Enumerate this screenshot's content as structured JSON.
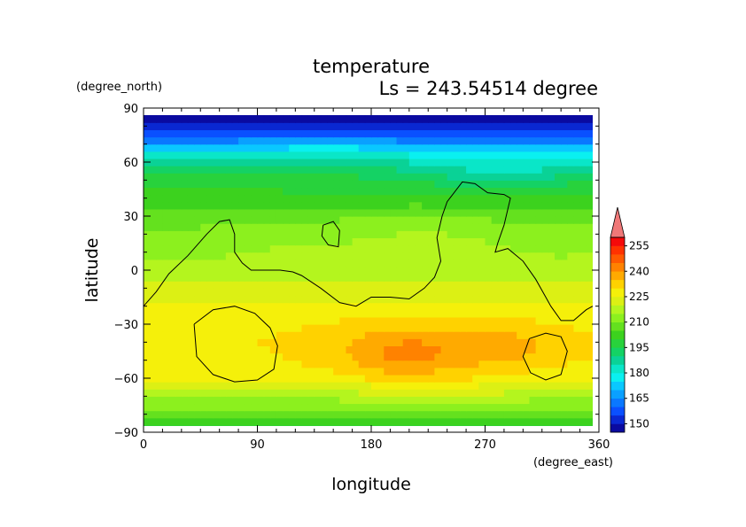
{
  "chart_data": {
    "type": "heatmap",
    "title": "temperature",
    "subtitle": "Ls = 243.54514 degree",
    "xlabel": "longitude",
    "ylabel": "latitude",
    "xunit": "(degree_east)",
    "yunit": "(degree_north)",
    "xlim": [
      0,
      360
    ],
    "ylim": [
      -90,
      90
    ],
    "xticks": [
      "0",
      "90",
      "180",
      "270",
      "360"
    ],
    "yticks": [
      "90",
      "60",
      "30",
      "0",
      "−30",
      "−60",
      "−90"
    ],
    "colorbar": {
      "tick_labels": [
        "150",
        "165",
        "180",
        "195",
        "210",
        "225",
        "240",
        "255"
      ],
      "levels": [
        145,
        150,
        155,
        160,
        165,
        170,
        175,
        180,
        185,
        190,
        195,
        200,
        205,
        210,
        215,
        220,
        225,
        230,
        235,
        240,
        245,
        250,
        255,
        260
      ],
      "colors": [
        "#0a0aa0",
        "#0a28d2",
        "#0a50ff",
        "#0a78ff",
        "#0aa0ff",
        "#0ac8ff",
        "#0af0f0",
        "#0ae6c8",
        "#0ad296",
        "#14d264",
        "#28d23c",
        "#3cd21e",
        "#64e11e",
        "#8cf01e",
        "#b4f51e",
        "#dcf014",
        "#f5f00a",
        "#ffd200",
        "#ffaa00",
        "#ff8200",
        "#ff5a00",
        "#ff3200",
        "#f50a0a",
        "#f07878"
      ],
      "extend": "max"
    },
    "zonal_profile": [
      {
        "lat": 90,
        "value": 148
      },
      {
        "lat": 82,
        "value": 150
      },
      {
        "lat": 74,
        "value": 160
      },
      {
        "lat": 66,
        "value": 176
      },
      {
        "lat": 58,
        "value": 188
      },
      {
        "lat": 50,
        "value": 196
      },
      {
        "lat": 42,
        "value": 201
      },
      {
        "lat": 34,
        "value": 206
      },
      {
        "lat": 26,
        "value": 211
      },
      {
        "lat": 18,
        "value": 214
      },
      {
        "lat": 10,
        "value": 216
      },
      {
        "lat": 0,
        "value": 218
      },
      {
        "lat": -10,
        "value": 221
      },
      {
        "lat": -20,
        "value": 225
      },
      {
        "lat": -30,
        "value": 228
      },
      {
        "lat": -40,
        "value": 229
      },
      {
        "lat": -50,
        "value": 228
      },
      {
        "lat": -60,
        "value": 225
      },
      {
        "lat": -68,
        "value": 218
      },
      {
        "lat": -76,
        "value": 210
      },
      {
        "lat": -84,
        "value": 202
      },
      {
        "lat": -90,
        "value": 198
      }
    ],
    "anomalies": [
      {
        "lon": 230,
        "lat": -45,
        "rlon": 100,
        "rlat": 22,
        "amp": 8
      },
      {
        "lon": 205,
        "lat": -48,
        "rlon": 38,
        "rlat": 12,
        "amp": 6
      },
      {
        "lon": 290,
        "lat": -42,
        "rlon": 40,
        "rlat": 10,
        "amp": 3
      },
      {
        "lon": 20,
        "lat": 15,
        "rlon": 60,
        "rlat": 15,
        "amp": -3
      },
      {
        "lon": 220,
        "lat": 20,
        "rlon": 50,
        "rlat": 12,
        "amp": 2
      },
      {
        "lon": 330,
        "lat": 15,
        "rlon": 40,
        "rlat": 12,
        "amp": -2
      },
      {
        "lon": 280,
        "lat": 55,
        "rlon": 80,
        "rlat": 10,
        "amp": -6
      },
      {
        "lon": 150,
        "lat": 62,
        "rlon": 70,
        "rlat": 10,
        "amp": 5
      },
      {
        "lon": 40,
        "lat": 58,
        "rlon": 60,
        "rlat": 10,
        "amp": 4
      }
    ],
    "topography_contours": [
      [
        [
          0,
          -20
        ],
        [
          10,
          -12
        ],
        [
          20,
          -2
        ],
        [
          35,
          8
        ],
        [
          50,
          20
        ],
        [
          60,
          27
        ],
        [
          68,
          28
        ],
        [
          72,
          20
        ],
        [
          72,
          10
        ],
        [
          78,
          4
        ],
        [
          85,
          0
        ],
        [
          95,
          0
        ],
        [
          108,
          0
        ],
        [
          118,
          -1
        ],
        [
          125,
          -3
        ],
        [
          140,
          -10
        ],
        [
          155,
          -18
        ],
        [
          168,
          -20
        ],
        [
          180,
          -15
        ],
        [
          195,
          -15
        ],
        [
          210,
          -16
        ],
        [
          222,
          -10
        ],
        [
          230,
          -4
        ],
        [
          235,
          5
        ],
        [
          232,
          18
        ],
        [
          236,
          30
        ],
        [
          240,
          38
        ],
        [
          252,
          49
        ],
        [
          262,
          48
        ],
        [
          272,
          43
        ],
        [
          285,
          42
        ],
        [
          290,
          40
        ],
        [
          285,
          25
        ],
        [
          280,
          15
        ],
        [
          278,
          10
        ],
        [
          288,
          12
        ],
        [
          300,
          5
        ],
        [
          310,
          -5
        ],
        [
          318,
          -15
        ],
        [
          322,
          -20
        ],
        [
          330,
          -28
        ],
        [
          340,
          -28
        ],
        [
          350,
          -22
        ],
        [
          355,
          -20
        ]
      ],
      [
        [
          142,
          25
        ],
        [
          150,
          27
        ],
        [
          155,
          22
        ],
        [
          154,
          13
        ],
        [
          146,
          14
        ],
        [
          141,
          19
        ],
        [
          142,
          25
        ]
      ],
      [
        [
          40,
          -30
        ],
        [
          55,
          -22
        ],
        [
          72,
          -20
        ],
        [
          88,
          -24
        ],
        [
          100,
          -32
        ],
        [
          106,
          -42
        ],
        [
          103,
          -55
        ],
        [
          90,
          -61
        ],
        [
          72,
          -62
        ],
        [
          55,
          -58
        ],
        [
          42,
          -48
        ],
        [
          40,
          -30
        ]
      ],
      [
        [
          305,
          -38
        ],
        [
          318,
          -35
        ],
        [
          330,
          -37
        ],
        [
          335,
          -45
        ],
        [
          330,
          -58
        ],
        [
          318,
          -61
        ],
        [
          306,
          -57
        ],
        [
          300,
          -48
        ],
        [
          305,
          -38
        ]
      ]
    ]
  }
}
